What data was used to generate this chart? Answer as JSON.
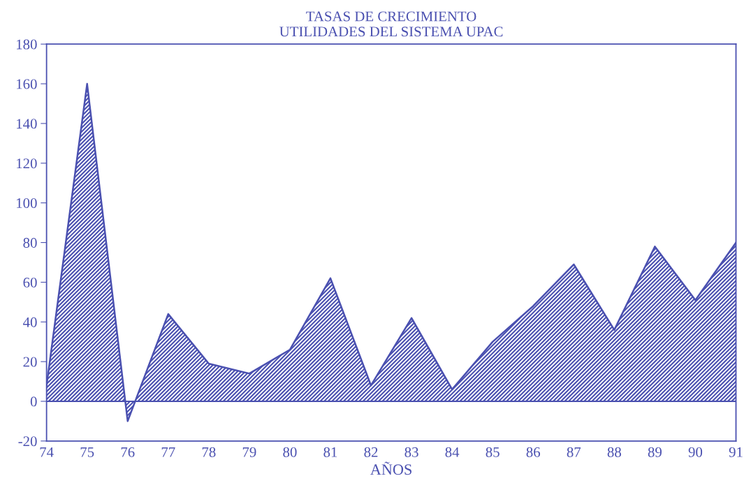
{
  "chart_data": {
    "type": "area",
    "title": "TASAS DE CRECIMIENTO\nUTILIDADES DEL SISTEMA UPAC",
    "xlabel": "AÑOS",
    "x": [
      74,
      75,
      76,
      77,
      78,
      79,
      80,
      81,
      82,
      83,
      84,
      85,
      86,
      87,
      88,
      89,
      90,
      91
    ],
    "series": [
      {
        "color": "#4a50b0",
        "values": [
          8,
          160,
          -10,
          44,
          19,
          14,
          26,
          62,
          8,
          42,
          6,
          30,
          48,
          69,
          36,
          78,
          51,
          80
        ]
      }
    ],
    "xlim": [
      74,
      91
    ],
    "xticks": [
      74,
      75,
      76,
      77,
      78,
      79,
      80,
      81,
      82,
      83,
      84,
      85,
      86,
      87,
      88,
      89,
      90,
      91
    ],
    "ylim": [
      -20,
      180
    ],
    "yticks": [
      -20,
      0,
      20,
      40,
      60,
      80,
      100,
      120,
      140,
      160,
      180
    ],
    "ref_lines": [
      {
        "axis": "y",
        "value": 0,
        "color": "#4a50b0"
      }
    ],
    "grid": false
  }
}
